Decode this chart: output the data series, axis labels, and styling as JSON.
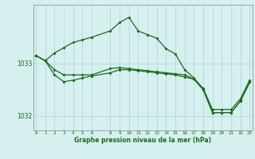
{
  "hours": [
    0,
    1,
    2,
    3,
    4,
    5,
    6,
    8,
    9,
    10,
    11,
    12,
    13,
    14,
    15,
    16,
    17,
    18,
    19,
    20,
    21,
    22,
    23
  ],
  "series_upper": [
    1033.15,
    1033.05,
    1033.2,
    1033.3,
    1033.4,
    1033.45,
    1033.5,
    1033.62,
    1033.78,
    1033.88,
    1033.62,
    1033.55,
    1033.48,
    1033.28,
    1033.18,
    1032.88,
    1032.72,
    1032.52,
    1032.12,
    1032.12,
    1032.12,
    1032.32,
    1032.68
  ],
  "series_lower": [
    1033.15,
    1033.05,
    1032.78,
    1032.65,
    1032.68,
    1032.72,
    1032.76,
    1032.82,
    1032.88,
    1032.88,
    1032.86,
    1032.84,
    1032.82,
    1032.8,
    1032.78,
    1032.74,
    1032.7,
    1032.5,
    1032.06,
    1032.06,
    1032.06,
    1032.28,
    1032.64
  ],
  "series_mid": [
    1033.15,
    1033.05,
    1032.88,
    1032.78,
    1032.78,
    1032.78,
    1032.78,
    1032.9,
    1032.92,
    1032.9,
    1032.88,
    1032.86,
    1032.84,
    1032.82,
    1032.8,
    1032.78,
    1032.7,
    1032.5,
    1032.06,
    1032.06,
    1032.06,
    1032.28,
    1032.64
  ],
  "xlim": [
    -0.3,
    23.3
  ],
  "ylim": [
    1031.72,
    1034.12
  ],
  "yticks": [
    1032,
    1033
  ],
  "xticks": [
    0,
    1,
    2,
    3,
    4,
    5,
    6,
    8,
    9,
    10,
    11,
    12,
    13,
    14,
    15,
    16,
    17,
    18,
    19,
    20,
    21,
    22,
    23
  ],
  "xlabel": "Graphe pression niveau de la mer (hPa)",
  "bg_color": "#d6efef",
  "line_color": "#1a6b1a",
  "grid_color": "#aed4d4",
  "tick_color": "#1a6b1a",
  "spine_color": "#888888"
}
